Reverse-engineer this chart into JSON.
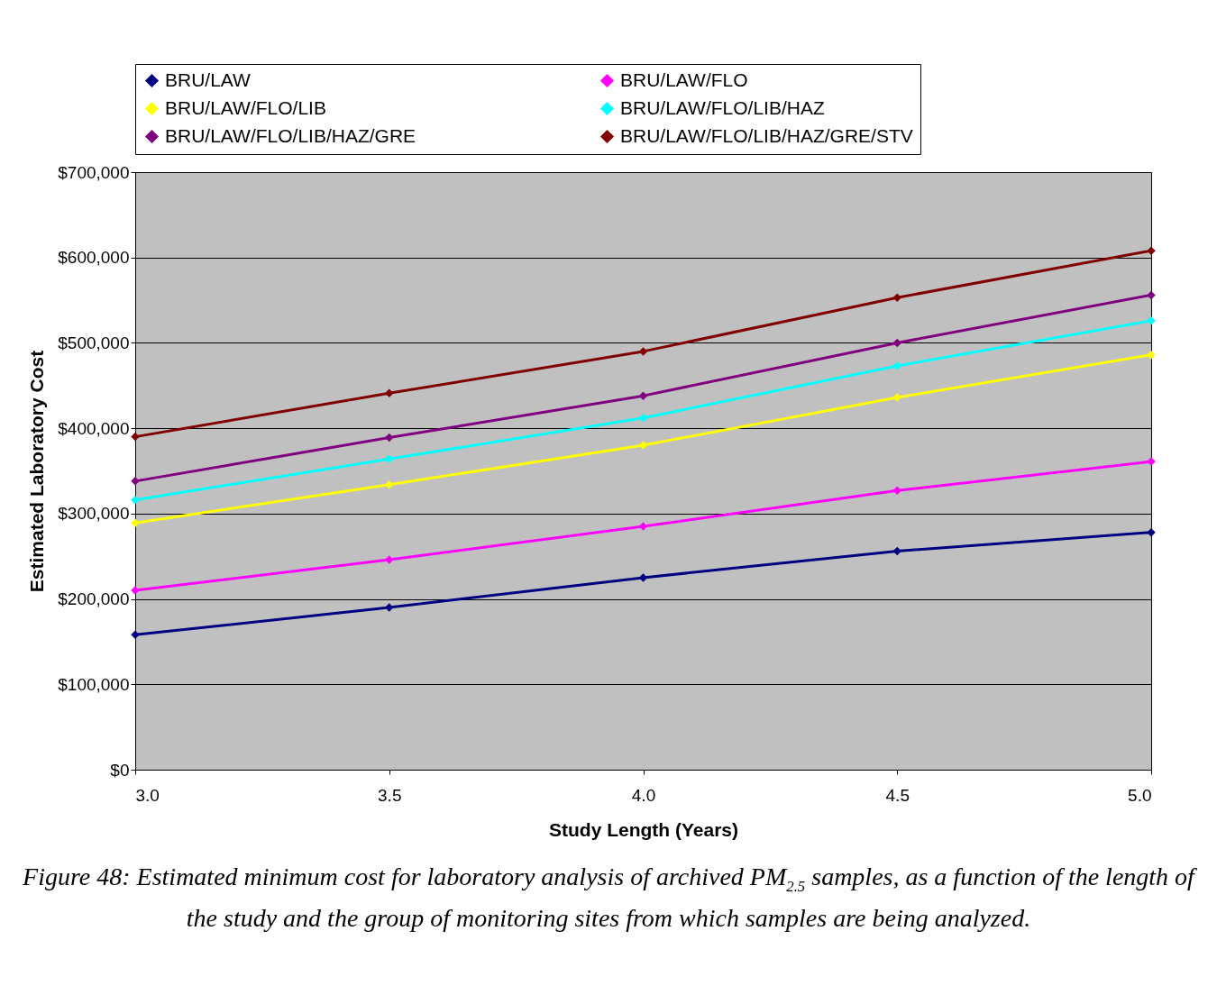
{
  "chart_data": {
    "type": "line",
    "xlabel": "Study Length (Years)",
    "ylabel": "Estimated Laboratory Cost",
    "x": [
      3.0,
      3.5,
      4.0,
      4.5,
      5.0
    ],
    "series": [
      {
        "name": "BRU/LAW",
        "color": "#000080",
        "values": [
          158000,
          190000,
          225000,
          256000,
          278000
        ]
      },
      {
        "name": "BRU/LAW/FLO",
        "color": "#ff00ff",
        "values": [
          210000,
          246000,
          285000,
          327000,
          361000
        ]
      },
      {
        "name": "BRU/LAW/FLO/LIB",
        "color": "#ffff00",
        "values": [
          289000,
          334000,
          380000,
          436000,
          486000
        ]
      },
      {
        "name": "BRU/LAW/FLO/LIB/HAZ",
        "color": "#00ffff",
        "values": [
          316000,
          364000,
          412000,
          473000,
          526000
        ]
      },
      {
        "name": "BRU/LAW/FLO/LIB/HAZ/GRE",
        "color": "#800080",
        "values": [
          338000,
          389000,
          438000,
          500000,
          556000
        ]
      },
      {
        "name": "BRU/LAW/FLO/LIB/HAZ/GRE/STV",
        "color": "#800000",
        "values": [
          390000,
          441000,
          490000,
          553000,
          608000
        ]
      }
    ],
    "xlim": [
      3.0,
      5.0
    ],
    "xticks": [
      {
        "value": 3,
        "label": "3.0"
      },
      {
        "value": 3.5,
        "label": "3.5"
      },
      {
        "value": 4,
        "label": "4.0"
      },
      {
        "value": 4.5,
        "label": "4.5"
      },
      {
        "value": 5,
        "label": "5.0"
      }
    ],
    "ylim": [
      0,
      700000
    ],
    "yticks": [
      {
        "value": 0,
        "label": "$0"
      },
      {
        "value": 100000,
        "label": "$100,000"
      },
      {
        "value": 200000,
        "label": "$200,000"
      },
      {
        "value": 300000,
        "label": "$300,000"
      },
      {
        "value": 400000,
        "label": "$400,000"
      },
      {
        "value": 500000,
        "label": "$500,000"
      },
      {
        "value": 600000,
        "label": "$600,000"
      },
      {
        "value": 700000,
        "label": "$700,000"
      }
    ],
    "grid": "y",
    "legend": "top",
    "marker": "diamond",
    "line_style": "solid",
    "annotations": [
      "Figure 48: Estimated minimum cost for laboratory analysis of archived PM$_{2.5}$ samples, as a function of the length of the study and the group of monitoring sites from which samples are being analyzed."
    ]
  }
}
